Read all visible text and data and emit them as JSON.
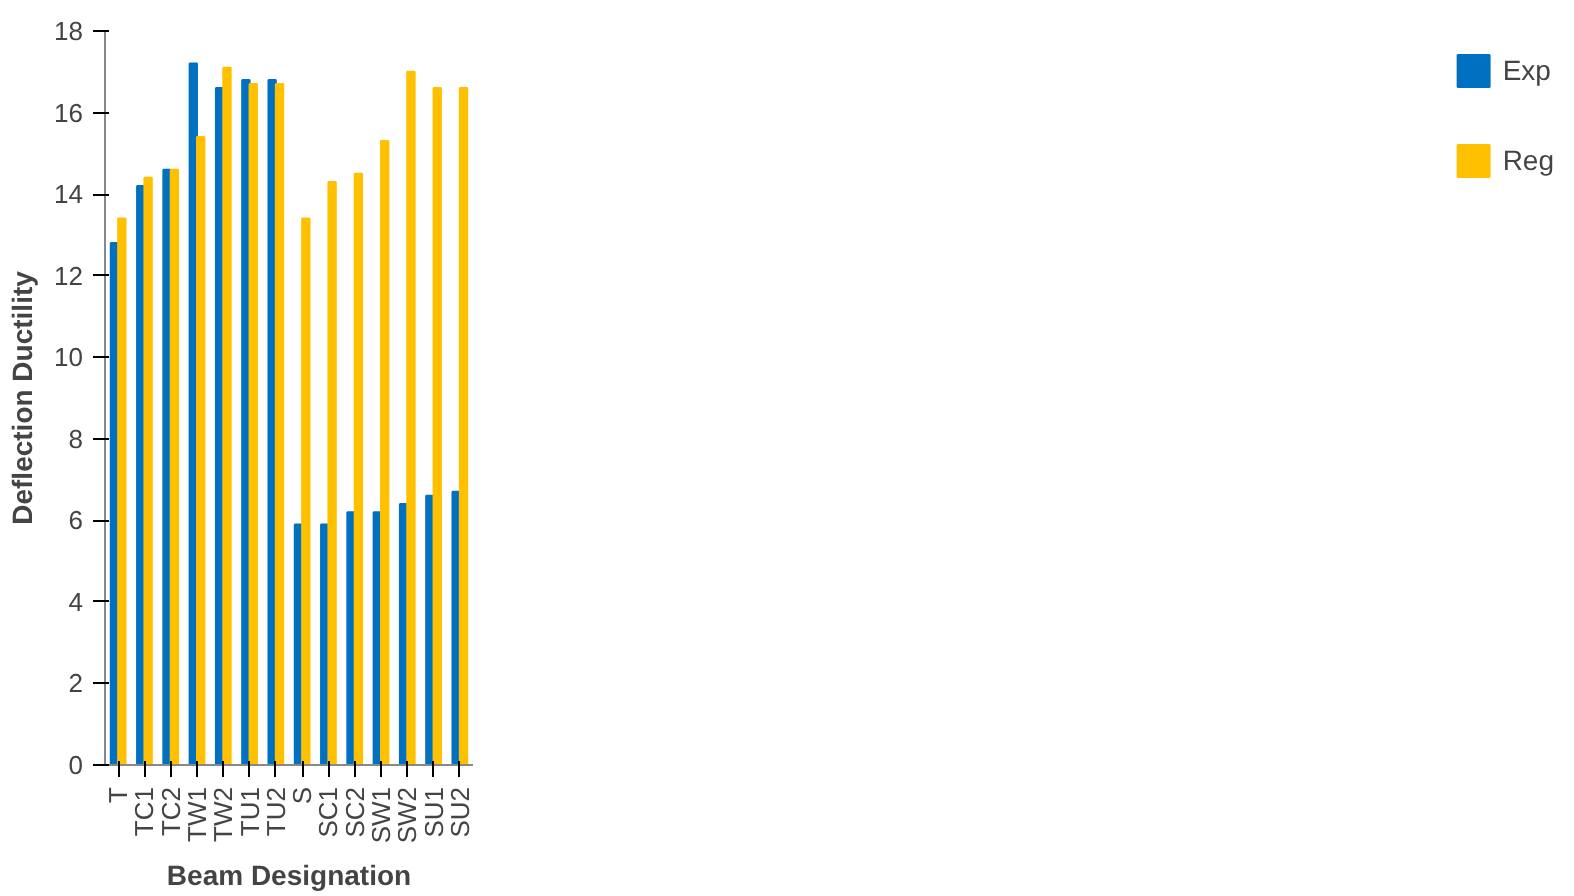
{
  "chart_data": {
    "type": "bar",
    "xlabel": "Beam Designation",
    "ylabel": "Deflection Ductility",
    "categories": [
      "T",
      "TC1",
      "TC2",
      "TW1",
      "TW2",
      "TU1",
      "TU2",
      "S",
      "SC1",
      "SC2",
      "SW1",
      "SW2",
      "SU1",
      "SU2"
    ],
    "series": [
      {
        "name": "Exp",
        "color": "#0070c0",
        "values": [
          12.8,
          14.2,
          14.6,
          17.2,
          16.6,
          16.8,
          16.8,
          5.9,
          5.9,
          6.2,
          6.2,
          6.4,
          6.6,
          6.7
        ]
      },
      {
        "name": "Reg",
        "color": "#ffc000",
        "values": [
          13.4,
          14.4,
          14.6,
          15.4,
          17.1,
          16.7,
          16.7,
          13.4,
          14.3,
          14.5,
          15.3,
          17.0,
          16.6,
          16.6
        ]
      }
    ],
    "ylim": [
      0,
      18
    ],
    "yticks": [
      0,
      2,
      4,
      6,
      8,
      10,
      12,
      14,
      16,
      18
    ],
    "grid": false,
    "legend": "right"
  }
}
